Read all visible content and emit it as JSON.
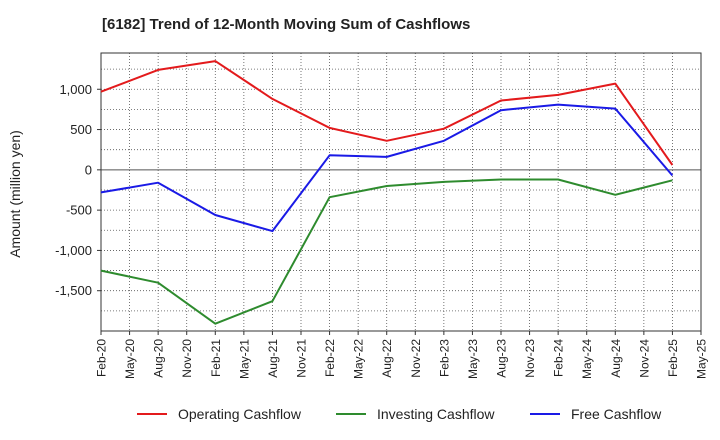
{
  "chart_data": {
    "type": "line",
    "title": "[6182]  Trend of 12-Month Moving Sum of Cashflows",
    "xlabel": "",
    "ylabel": "Amount (million yen)",
    "categories": [
      "Feb-20",
      "May-20",
      "Aug-20",
      "Nov-20",
      "Feb-21",
      "May-21",
      "Aug-21",
      "Nov-21",
      "Feb-22",
      "May-22",
      "Aug-22",
      "Nov-22",
      "Feb-23",
      "May-23",
      "Aug-23",
      "Nov-23",
      "Feb-24",
      "May-24",
      "Aug-24",
      "Nov-24",
      "Feb-25",
      "May-25"
    ],
    "ylim": [
      -2000,
      1450
    ],
    "yticks": [
      1000,
      500,
      0,
      -500,
      -1000,
      -1500
    ],
    "ytick_labels": [
      "1,000",
      "500",
      "0",
      "-500",
      "-1,000",
      "-1,500"
    ],
    "grid": true,
    "legend_position": "bottom",
    "series": [
      {
        "name": "Operating Cashflow",
        "color": "#e31a1c",
        "x": [
          "Feb-20",
          "Aug-20",
          "Feb-21",
          "Aug-21",
          "Feb-22",
          "Aug-22",
          "Feb-23",
          "Aug-23",
          "Feb-24",
          "Aug-24",
          "Feb-25"
        ],
        "values": [
          970,
          1240,
          1350,
          880,
          520,
          360,
          510,
          860,
          930,
          1070,
          60
        ]
      },
      {
        "name": "Investing Cashflow",
        "color": "#2e8b2e",
        "x": [
          "Feb-20",
          "Aug-20",
          "Feb-21",
          "Aug-21",
          "Feb-22",
          "Aug-22",
          "Feb-23",
          "Aug-23",
          "Feb-24",
          "Aug-24",
          "Feb-25"
        ],
        "values": [
          -1250,
          -1400,
          -1910,
          -1630,
          -340,
          -200,
          -150,
          -120,
          -120,
          -310,
          -130
        ]
      },
      {
        "name": "Free Cashflow",
        "color": "#1a1ae6",
        "x": [
          "Feb-20",
          "Aug-20",
          "Feb-21",
          "Aug-21",
          "Feb-22",
          "Aug-22",
          "Feb-23",
          "Aug-23",
          "Feb-24",
          "Aug-24",
          "Feb-25"
        ],
        "values": [
          -280,
          -160,
          -560,
          -760,
          180,
          160,
          360,
          740,
          810,
          760,
          -70
        ]
      }
    ]
  }
}
